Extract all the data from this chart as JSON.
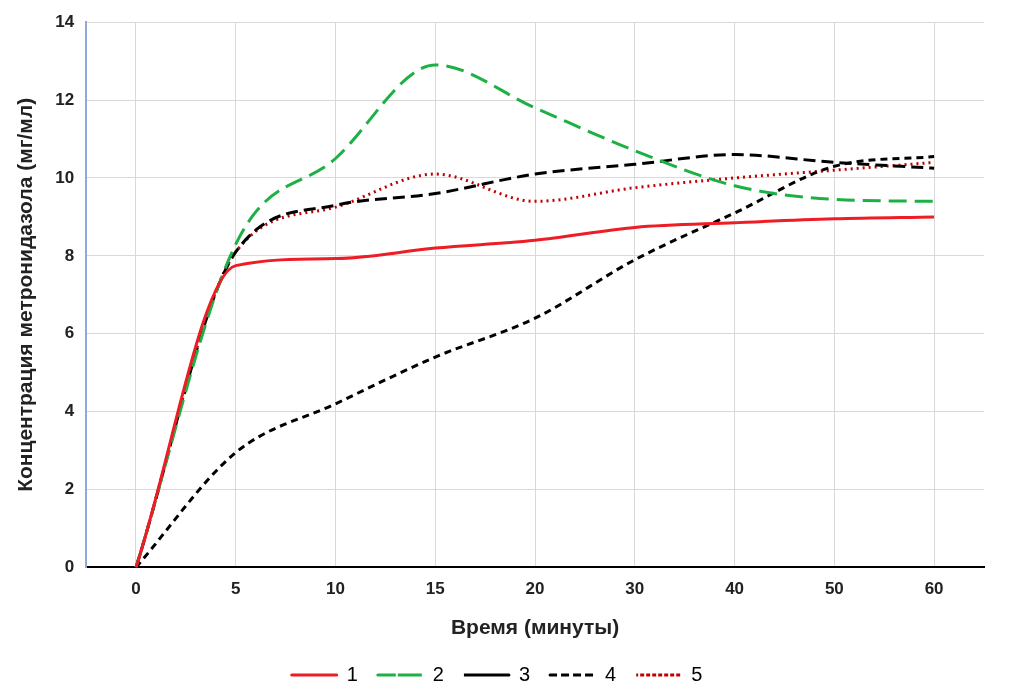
{
  "chart_data": {
    "type": "line",
    "xlabel": "Время (минуты)",
    "ylabel": "Концентрация метронидазола (мг/мл)",
    "categories": [
      "0",
      "5",
      "10",
      "15",
      "20",
      "30",
      "40",
      "50",
      "60"
    ],
    "ylim": [
      0,
      14
    ],
    "yticks": [
      0,
      2,
      4,
      6,
      8,
      10,
      12,
      14
    ],
    "grid": true,
    "legend": "bottom",
    "marker": "none",
    "series": [
      {
        "name": "1",
        "color": "#ee1c25",
        "line_style": "solid",
        "values": [
          0,
          7.75,
          7.93,
          8.2,
          8.4,
          8.73,
          8.85,
          8.95,
          9.0
        ]
      },
      {
        "name": "2",
        "color": "#1db045",
        "line_style": "dashed",
        "values": [
          0,
          8.3,
          10.5,
          12.9,
          11.8,
          10.7,
          9.8,
          9.45,
          9.4
        ]
      },
      {
        "name": "3",
        "color": "#000000",
        "line_style": "dashed",
        "values": [
          0,
          8.1,
          9.3,
          9.6,
          10.1,
          10.35,
          10.6,
          10.4,
          10.25
        ]
      },
      {
        "name": "4",
        "color": "#000000",
        "line_style": "dashed",
        "values": [
          0,
          2.95,
          4.2,
          5.4,
          6.4,
          7.9,
          9.1,
          10.3,
          10.55
        ]
      },
      {
        "name": "5",
        "color": "#c00000",
        "line_style": "dotted",
        "values": [
          0,
          8.1,
          9.25,
          10.1,
          9.4,
          9.75,
          10.0,
          10.2,
          10.4
        ]
      }
    ]
  }
}
